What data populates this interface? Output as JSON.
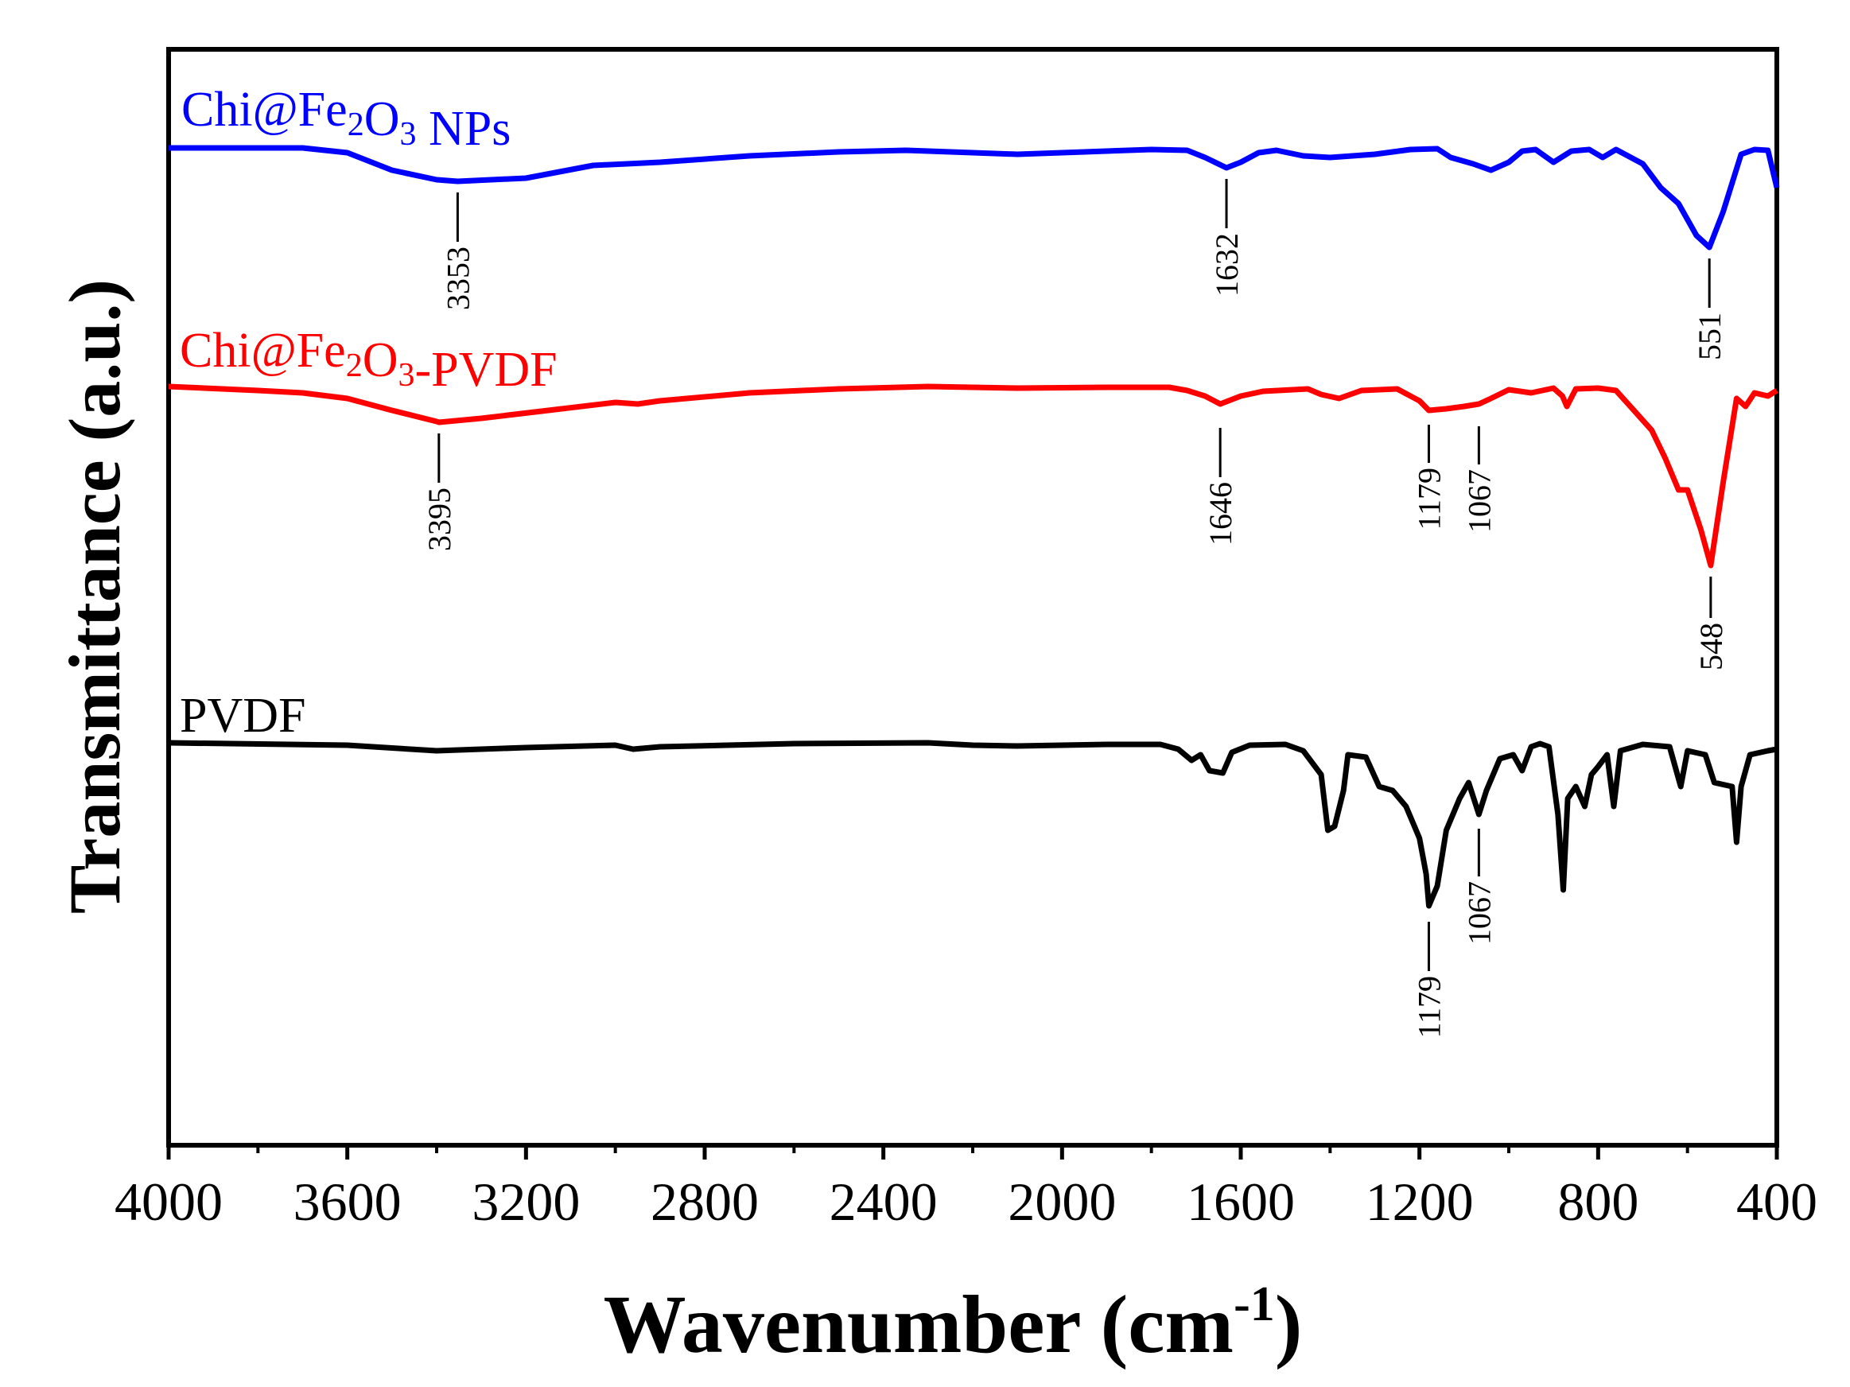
{
  "chart_data": {
    "type": "line",
    "title": "",
    "xlabel_main": "Wavenumber (cm",
    "xlabel_sup": "-1",
    "xlabel_close": ")",
    "ylabel": "Transmittance (a.u.)",
    "xlim": [
      4000,
      400
    ],
    "xticks": [
      "4000",
      "3600",
      "3200",
      "2800",
      "2400",
      "2000",
      "1600",
      "1200",
      "800",
      "400"
    ],
    "yticks_shown": false,
    "series": [
      {
        "name": "Chi@Fe2O3 NPs",
        "label_parts": [
          "Chi@Fe",
          "2",
          "O",
          "3",
          " NPs"
        ],
        "color": "#0000ff",
        "points": [
          [
            4000,
            0
          ],
          [
            3700,
            0
          ],
          [
            3600,
            -6
          ],
          [
            3500,
            -28
          ],
          [
            3400,
            -40
          ],
          [
            3353,
            -42
          ],
          [
            3200,
            -38
          ],
          [
            3050,
            -22
          ],
          [
            2900,
            -18
          ],
          [
            2700,
            -10
          ],
          [
            2500,
            -5
          ],
          [
            2350,
            -3
          ],
          [
            2200,
            -6
          ],
          [
            2100,
            -8
          ],
          [
            1950,
            -5
          ],
          [
            1800,
            -2
          ],
          [
            1720,
            -3
          ],
          [
            1680,
            -12
          ],
          [
            1632,
            -25
          ],
          [
            1600,
            -18
          ],
          [
            1560,
            -6
          ],
          [
            1520,
            -3
          ],
          [
            1460,
            -10
          ],
          [
            1400,
            -12
          ],
          [
            1300,
            -8
          ],
          [
            1220,
            -2
          ],
          [
            1160,
            -1
          ],
          [
            1130,
            -12
          ],
          [
            1080,
            -20
          ],
          [
            1040,
            -28
          ],
          [
            1000,
            -18
          ],
          [
            970,
            -4
          ],
          [
            940,
            -2
          ],
          [
            900,
            -18
          ],
          [
            860,
            -4
          ],
          [
            820,
            -2
          ],
          [
            790,
            -12
          ],
          [
            760,
            -2
          ],
          [
            700,
            -20
          ],
          [
            660,
            -50
          ],
          [
            620,
            -70
          ],
          [
            580,
            -110
          ],
          [
            551,
            -125
          ],
          [
            520,
            -80
          ],
          [
            480,
            -8
          ],
          [
            450,
            -2
          ],
          [
            420,
            -3
          ],
          [
            400,
            -50
          ]
        ],
        "annotations": [
          {
            "label": "3353",
            "wn": 3353
          },
          {
            "label": "1632",
            "wn": 1632
          },
          {
            "label": "551",
            "wn": 551
          }
        ]
      },
      {
        "name": "Chi@Fe2O3-PVDF",
        "label_parts": [
          "Chi@Fe",
          "2",
          "O",
          "3",
          "-PVDF"
        ],
        "color": "#ff0000",
        "points": [
          [
            4000,
            0
          ],
          [
            3800,
            -5
          ],
          [
            3700,
            -8
          ],
          [
            3600,
            -15
          ],
          [
            3500,
            -30
          ],
          [
            3400,
            -44
          ],
          [
            3395,
            -45
          ],
          [
            3300,
            -40
          ],
          [
            3150,
            -30
          ],
          [
            3000,
            -20
          ],
          [
            2950,
            -22
          ],
          [
            2900,
            -18
          ],
          [
            2700,
            -8
          ],
          [
            2500,
            -3
          ],
          [
            2300,
            0
          ],
          [
            2100,
            -2
          ],
          [
            1900,
            -1
          ],
          [
            1760,
            -1
          ],
          [
            1720,
            -5
          ],
          [
            1680,
            -12
          ],
          [
            1646,
            -22
          ],
          [
            1600,
            -12
          ],
          [
            1550,
            -6
          ],
          [
            1450,
            -3
          ],
          [
            1420,
            -10
          ],
          [
            1380,
            -15
          ],
          [
            1330,
            -5
          ],
          [
            1250,
            -3
          ],
          [
            1200,
            -18
          ],
          [
            1179,
            -30
          ],
          [
            1140,
            -28
          ],
          [
            1100,
            -25
          ],
          [
            1067,
            -22
          ],
          [
            1040,
            -15
          ],
          [
            1000,
            -4
          ],
          [
            950,
            -8
          ],
          [
            900,
            -2
          ],
          [
            880,
            -12
          ],
          [
            870,
            -25
          ],
          [
            850,
            -3
          ],
          [
            800,
            -2
          ],
          [
            760,
            -5
          ],
          [
            720,
            -30
          ],
          [
            680,
            -55
          ],
          [
            650,
            -90
          ],
          [
            620,
            -130
          ],
          [
            600,
            -130
          ],
          [
            570,
            -180
          ],
          [
            548,
            -225
          ],
          [
            520,
            -120
          ],
          [
            490,
            -15
          ],
          [
            470,
            -25
          ],
          [
            450,
            -8
          ],
          [
            420,
            -12
          ],
          [
            400,
            -5
          ]
        ],
        "annotations": [
          {
            "label": "3395",
            "wn": 3395
          },
          {
            "label": "1646",
            "wn": 1646
          },
          {
            "label": "1179",
            "wn": 1179
          },
          {
            "label": "1067",
            "wn": 1067
          },
          {
            "label": "548",
            "wn": 548
          }
        ]
      },
      {
        "name": "PVDF",
        "label_parts": [
          "PVDF"
        ],
        "color": "#000000",
        "points": [
          [
            4000,
            0
          ],
          [
            3600,
            -3
          ],
          [
            3400,
            -10
          ],
          [
            3200,
            -6
          ],
          [
            3000,
            -3
          ],
          [
            2960,
            -8
          ],
          [
            2900,
            -5
          ],
          [
            2600,
            -1
          ],
          [
            2300,
            0
          ],
          [
            2200,
            -3
          ],
          [
            2100,
            -4
          ],
          [
            1900,
            -2
          ],
          [
            1780,
            -2
          ],
          [
            1740,
            -8
          ],
          [
            1710,
            -22
          ],
          [
            1690,
            -15
          ],
          [
            1670,
            -35
          ],
          [
            1640,
            -38
          ],
          [
            1620,
            -12
          ],
          [
            1580,
            -3
          ],
          [
            1500,
            -2
          ],
          [
            1460,
            -10
          ],
          [
            1420,
            -40
          ],
          [
            1405,
            -110
          ],
          [
            1390,
            -105
          ],
          [
            1370,
            -60
          ],
          [
            1360,
            -15
          ],
          [
            1320,
            -18
          ],
          [
            1290,
            -55
          ],
          [
            1260,
            -60
          ],
          [
            1230,
            -80
          ],
          [
            1200,
            -120
          ],
          [
            1185,
            -165
          ],
          [
            1179,
            -205
          ],
          [
            1160,
            -180
          ],
          [
            1140,
            -110
          ],
          [
            1110,
            -70
          ],
          [
            1090,
            -50
          ],
          [
            1067,
            -90
          ],
          [
            1050,
            -60
          ],
          [
            1020,
            -20
          ],
          [
            990,
            -15
          ],
          [
            970,
            -35
          ],
          [
            950,
            -5
          ],
          [
            930,
            -1
          ],
          [
            910,
            -5
          ],
          [
            890,
            -90
          ],
          [
            878,
            -185
          ],
          [
            868,
            -70
          ],
          [
            850,
            -55
          ],
          [
            830,
            -80
          ],
          [
            815,
            -40
          ],
          [
            800,
            -30
          ],
          [
            780,
            -15
          ],
          [
            765,
            -80
          ],
          [
            750,
            -10
          ],
          [
            700,
            -2
          ],
          [
            640,
            -5
          ],
          [
            615,
            -55
          ],
          [
            600,
            -10
          ],
          [
            560,
            -15
          ],
          [
            540,
            -50
          ],
          [
            500,
            -55
          ],
          [
            490,
            -125
          ],
          [
            480,
            -55
          ],
          [
            460,
            -15
          ],
          [
            420,
            -10
          ],
          [
            400,
            -8
          ]
        ],
        "annotations": [
          {
            "label": "1179",
            "wn": 1179
          },
          {
            "label": "1067",
            "wn": 1067
          }
        ]
      }
    ]
  }
}
